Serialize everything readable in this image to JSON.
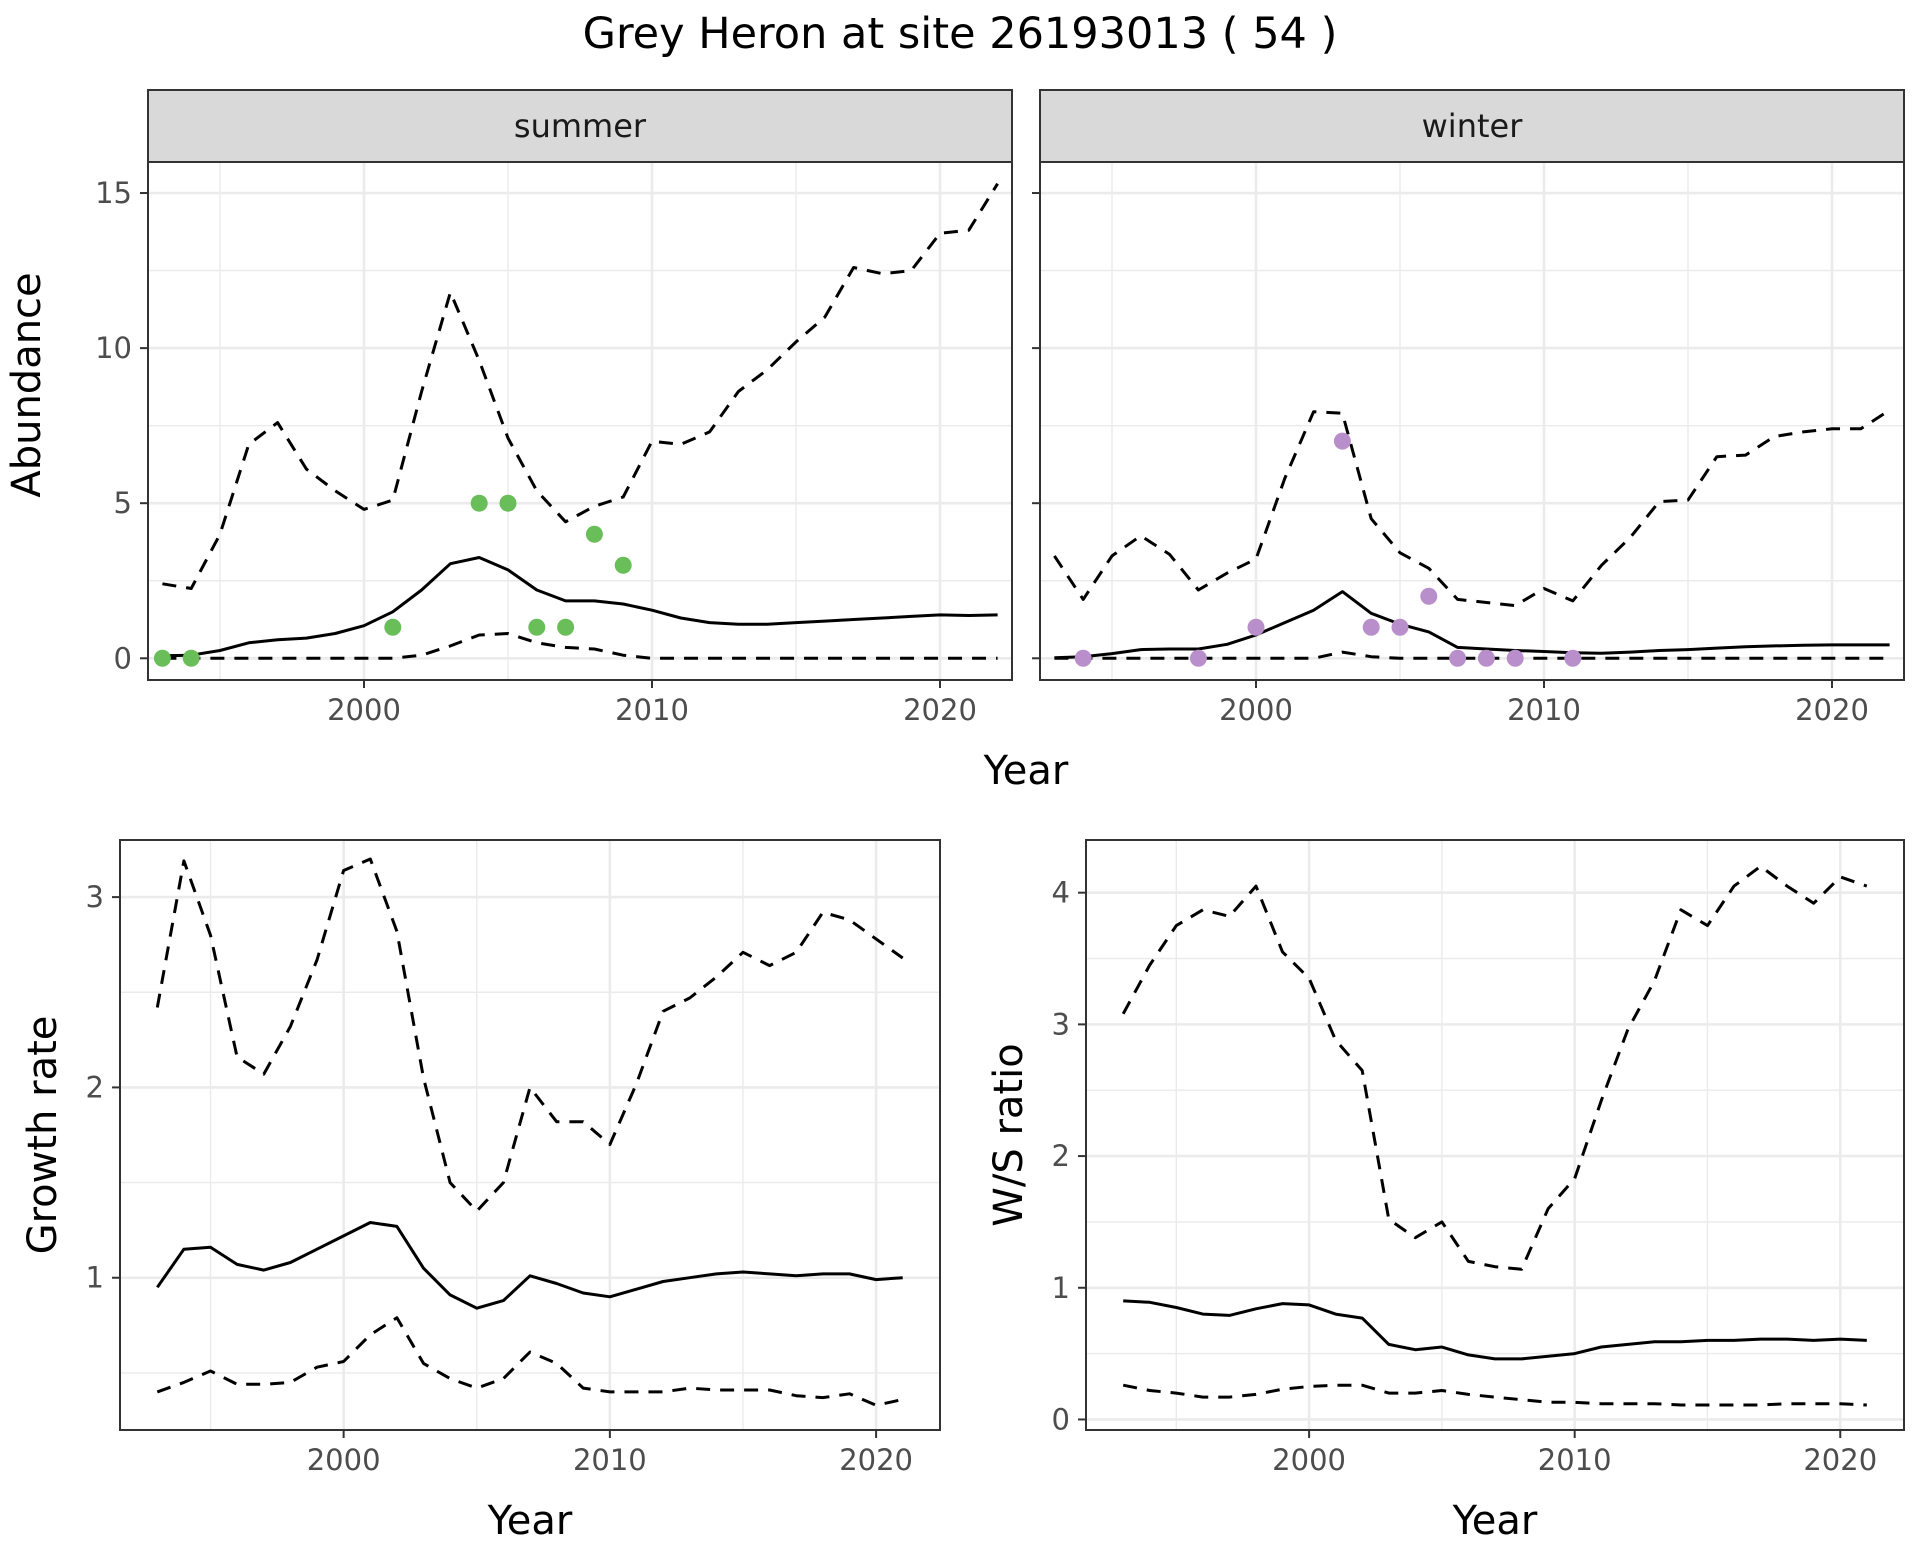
{
  "title": "Grey Heron at site 26193013 ( 54 )",
  "colors": {
    "summer_points": "#6ABE59",
    "winter_points": "#B88FCB",
    "lines": "#000000",
    "strip_fill": "#D9D9D9",
    "grid_major": "#EBEBEB",
    "panel_border": "#333333"
  },
  "chart_data": [
    {
      "type": "line",
      "facet": "summer",
      "strip_label": "summer",
      "xlabel": "Year",
      "ylabel": "Abundance",
      "xlim": [
        1992.5,
        2022.5
      ],
      "ylim": [
        -0.7,
        16.0
      ],
      "xticks": [
        2000,
        2010,
        2020
      ],
      "yticks": [
        0,
        5,
        10,
        15
      ],
      "grid": true,
      "x": [
        1993,
        1994,
        1995,
        1996,
        1997,
        1998,
        1999,
        2000,
        2001,
        2002,
        2003,
        2004,
        2005,
        2006,
        2007,
        2008,
        2009,
        2010,
        2011,
        2012,
        2013,
        2014,
        2015,
        2016,
        2017,
        2018,
        2019,
        2020,
        2021,
        2022
      ],
      "series": [
        {
          "role": "estimate",
          "style": "solid",
          "values": [
            0.08,
            0.1,
            0.25,
            0.5,
            0.6,
            0.65,
            0.8,
            1.05,
            1.5,
            2.2,
            3.05,
            3.25,
            2.85,
            2.2,
            1.85,
            1.85,
            1.75,
            1.55,
            1.3,
            1.15,
            1.1,
            1.1,
            1.15,
            1.2,
            1.25,
            1.3,
            1.35,
            1.4,
            1.38,
            1.4
          ]
        },
        {
          "role": "upper",
          "style": "dashed",
          "values": [
            2.4,
            2.25,
            4.0,
            6.9,
            7.6,
            6.1,
            5.4,
            4.8,
            5.1,
            8.6,
            11.8,
            9.6,
            7.1,
            5.4,
            4.4,
            4.9,
            5.2,
            7.0,
            6.9,
            7.3,
            8.6,
            9.3,
            10.2,
            11.0,
            12.6,
            12.4,
            12.5,
            13.7,
            13.8,
            15.3
          ]
        },
        {
          "role": "lower",
          "style": "dashed",
          "values": [
            0,
            0,
            0,
            0,
            0,
            0,
            0,
            0,
            0,
            0.1,
            0.4,
            0.75,
            0.8,
            0.5,
            0.35,
            0.3,
            0.1,
            0,
            0,
            0,
            0,
            0,
            0,
            0,
            0,
            0,
            0,
            0,
            0,
            0
          ]
        }
      ],
      "points": {
        "name": "observed",
        "x": [
          1993,
          1994,
          2001,
          2004,
          2005,
          2006,
          2007,
          2008,
          2009
        ],
        "y": [
          0,
          0,
          1,
          5,
          5,
          1,
          1,
          4,
          3
        ]
      }
    },
    {
      "type": "line",
      "facet": "winter",
      "strip_label": "winter",
      "xlabel": "Year",
      "ylabel": "Abundance",
      "xlim": [
        1992.5,
        2022.5
      ],
      "ylim": [
        -0.7,
        16.0
      ],
      "xticks": [
        2000,
        2010,
        2020
      ],
      "yticks": [
        0,
        5,
        10,
        15
      ],
      "grid": true,
      "x": [
        1993,
        1994,
        1995,
        1996,
        1997,
        1998,
        1999,
        2000,
        2001,
        2002,
        2003,
        2004,
        2005,
        2006,
        2007,
        2008,
        2009,
        2010,
        2011,
        2012,
        2013,
        2014,
        2015,
        2016,
        2017,
        2018,
        2019,
        2020,
        2021,
        2022
      ],
      "series": [
        {
          "role": "estimate",
          "style": "solid",
          "values": [
            0.02,
            0.05,
            0.15,
            0.28,
            0.3,
            0.3,
            0.45,
            0.75,
            1.15,
            1.55,
            2.15,
            1.45,
            1.1,
            0.85,
            0.35,
            0.3,
            0.25,
            0.22,
            0.18,
            0.16,
            0.2,
            0.25,
            0.28,
            0.33,
            0.37,
            0.4,
            0.42,
            0.43,
            0.43,
            0.43
          ]
        },
        {
          "role": "upper",
          "style": "dashed",
          "values": [
            3.3,
            1.9,
            3.3,
            3.95,
            3.35,
            2.2,
            2.75,
            3.2,
            5.8,
            7.95,
            7.9,
            4.5,
            3.4,
            2.9,
            1.9,
            1.8,
            1.7,
            2.25,
            1.85,
            3.0,
            3.9,
            5.05,
            5.1,
            6.5,
            6.55,
            7.15,
            7.3,
            7.4,
            7.4,
            8.0
          ]
        },
        {
          "role": "lower",
          "style": "dashed",
          "values": [
            0,
            0,
            0,
            0,
            0,
            0,
            0,
            0,
            0,
            0,
            0.2,
            0.05,
            0,
            0,
            0,
            0,
            0,
            0,
            0,
            0,
            0,
            0,
            0,
            0,
            0,
            0,
            0,
            0,
            0,
            0
          ]
        }
      ],
      "points": {
        "name": "observed",
        "x": [
          1994,
          1998,
          2000,
          2003,
          2004,
          2005,
          2006,
          2007,
          2008,
          2009,
          2011
        ],
        "y": [
          0,
          0,
          1,
          7,
          1,
          1,
          2,
          0,
          0,
          0,
          0
        ]
      }
    },
    {
      "type": "line",
      "xlabel": "Year",
      "ylabel": "Growth rate",
      "xlim": [
        1991.6,
        2022.4
      ],
      "ylim": [
        0.2,
        3.3
      ],
      "xticks": [
        2000,
        2010,
        2020
      ],
      "yticks": [
        1,
        2,
        3
      ],
      "grid": true,
      "x": [
        1993,
        1994,
        1995,
        1996,
        1997,
        1998,
        1999,
        2000,
        2001,
        2002,
        2003,
        2004,
        2005,
        2006,
        2007,
        2008,
        2009,
        2010,
        2011,
        2012,
        2013,
        2014,
        2015,
        2016,
        2017,
        2018,
        2019,
        2020,
        2021
      ],
      "series": [
        {
          "role": "estimate",
          "style": "solid",
          "values": [
            0.95,
            1.15,
            1.16,
            1.07,
            1.04,
            1.08,
            1.15,
            1.22,
            1.29,
            1.27,
            1.05,
            0.91,
            0.84,
            0.88,
            1.01,
            0.97,
            0.92,
            0.9,
            0.94,
            0.98,
            1.0,
            1.02,
            1.03,
            1.02,
            1.01,
            1.02,
            1.02,
            0.99,
            1.0
          ]
        },
        {
          "role": "upper",
          "style": "dashed",
          "values": [
            2.42,
            3.19,
            2.8,
            2.16,
            2.07,
            2.32,
            2.67,
            3.14,
            3.2,
            2.82,
            2.05,
            1.5,
            1.35,
            1.5,
            2.0,
            1.82,
            1.82,
            1.7,
            2.02,
            2.4,
            2.47,
            2.58,
            2.71,
            2.64,
            2.71,
            2.92,
            2.88,
            2.78,
            2.68
          ]
        },
        {
          "role": "lower",
          "style": "dashed",
          "values": [
            0.4,
            0.45,
            0.51,
            0.44,
            0.44,
            0.45,
            0.53,
            0.56,
            0.7,
            0.79,
            0.55,
            0.47,
            0.42,
            0.47,
            0.61,
            0.55,
            0.42,
            0.4,
            0.4,
            0.4,
            0.42,
            0.41,
            0.41,
            0.41,
            0.38,
            0.37,
            0.39,
            0.33,
            0.36
          ]
        }
      ]
    },
    {
      "type": "line",
      "xlabel": "Year",
      "ylabel": "W/S ratio",
      "xlim": [
        1991.6,
        2022.4
      ],
      "ylim": [
        -0.08,
        4.4
      ],
      "xticks": [
        2000,
        2010,
        2020
      ],
      "yticks": [
        0,
        1,
        2,
        3,
        4
      ],
      "grid": true,
      "x": [
        1993,
        1994,
        1995,
        1996,
        1997,
        1998,
        1999,
        2000,
        2001,
        2002,
        2003,
        2004,
        2005,
        2006,
        2007,
        2008,
        2009,
        2010,
        2011,
        2012,
        2013,
        2014,
        2015,
        2016,
        2017,
        2018,
        2019,
        2020,
        2021
      ],
      "series": [
        {
          "role": "estimate",
          "style": "solid",
          "values": [
            0.9,
            0.89,
            0.85,
            0.8,
            0.79,
            0.84,
            0.88,
            0.87,
            0.8,
            0.77,
            0.57,
            0.53,
            0.55,
            0.49,
            0.46,
            0.46,
            0.48,
            0.5,
            0.55,
            0.57,
            0.59,
            0.59,
            0.6,
            0.6,
            0.61,
            0.61,
            0.6,
            0.61,
            0.6
          ]
        },
        {
          "role": "upper",
          "style": "dashed",
          "values": [
            3.08,
            3.45,
            3.75,
            3.87,
            3.82,
            4.05,
            3.55,
            3.35,
            2.88,
            2.65,
            1.52,
            1.38,
            1.5,
            1.2,
            1.16,
            1.14,
            1.6,
            1.83,
            2.42,
            2.96,
            3.33,
            3.87,
            3.75,
            4.05,
            4.2,
            4.05,
            3.92,
            4.12,
            4.05
          ]
        },
        {
          "role": "lower",
          "style": "dashed",
          "values": [
            0.26,
            0.22,
            0.2,
            0.17,
            0.17,
            0.19,
            0.23,
            0.25,
            0.26,
            0.26,
            0.2,
            0.2,
            0.22,
            0.19,
            0.17,
            0.15,
            0.13,
            0.13,
            0.12,
            0.12,
            0.12,
            0.11,
            0.11,
            0.11,
            0.11,
            0.12,
            0.12,
            0.12,
            0.11
          ]
        }
      ]
    }
  ]
}
